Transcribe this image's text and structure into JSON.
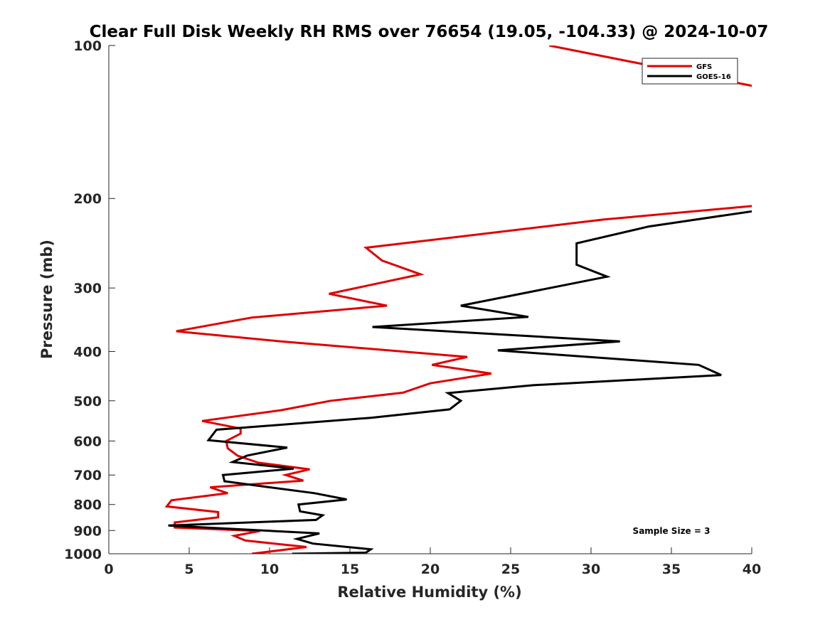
{
  "chart_data": {
    "type": "line",
    "title": "Clear Full Disk Weekly RH RMS over 76654 (19.05, -104.33) @ 2024-10-07",
    "xlabel": "Relative Humidity (%)",
    "ylabel": "Pressure (mb)",
    "xlim": [
      0,
      40
    ],
    "ylim": [
      100,
      1000
    ],
    "yscale": "log",
    "y_reversed": true,
    "xticks": [
      0,
      5,
      10,
      15,
      20,
      25,
      30,
      35,
      40
    ],
    "yticks": [
      100,
      200,
      300,
      400,
      500,
      600,
      700,
      800,
      900,
      1000
    ],
    "legend_position": "top-right",
    "annotation": "Sample Size = 3",
    "series": [
      {
        "name": "GFS",
        "color": "#e00000",
        "points": [
          [
            27.4,
            100
          ],
          [
            40.0,
            120
          ],
          null,
          [
            40.0,
            207
          ],
          [
            30.8,
            220
          ],
          [
            16.0,
            250
          ],
          [
            17.0,
            265
          ],
          [
            19.4,
            282
          ],
          [
            13.7,
            308
          ],
          [
            17.3,
            325
          ],
          [
            8.9,
            343
          ],
          [
            4.2,
            365
          ],
          [
            10.7,
            382
          ],
          [
            22.3,
            410
          ],
          [
            20.1,
            425
          ],
          [
            23.8,
            442
          ],
          [
            20.0,
            462
          ],
          [
            18.3,
            482
          ],
          [
            13.8,
            500
          ],
          [
            10.7,
            522
          ],
          [
            5.8,
            548
          ],
          [
            8.2,
            567
          ],
          [
            8.2,
            580
          ],
          [
            7.3,
            600
          ],
          [
            7.4,
            620
          ],
          [
            8.0,
            641
          ],
          [
            9.3,
            662
          ],
          [
            12.5,
            682
          ],
          [
            11.0,
            700
          ],
          [
            12.1,
            718
          ],
          [
            6.3,
            740
          ],
          [
            7.4,
            760
          ],
          [
            3.9,
            785
          ],
          [
            3.6,
            807
          ],
          [
            6.8,
            828
          ],
          [
            6.8,
            848
          ],
          [
            4.1,
            868
          ],
          [
            4.1,
            888
          ],
          [
            9.4,
            902
          ],
          [
            7.8,
            922
          ],
          [
            8.5,
            942
          ],
          [
            12.3,
            970
          ],
          [
            8.9,
            1000
          ]
        ]
      },
      {
        "name": "GOES-16",
        "color": "#000000",
        "points": [
          [
            40.0,
            212
          ],
          [
            33.6,
            227
          ],
          [
            29.1,
            245
          ],
          [
            29.1,
            270
          ],
          [
            31.0,
            285
          ],
          [
            21.9,
            325
          ],
          [
            26.1,
            342
          ],
          [
            16.4,
            358
          ],
          [
            31.8,
            382
          ],
          [
            24.2,
            398
          ],
          [
            36.7,
            425
          ],
          [
            38.1,
            445
          ],
          [
            26.4,
            466
          ],
          [
            21.1,
            483
          ],
          [
            21.9,
            500
          ],
          [
            21.2,
            520
          ],
          [
            16.3,
            540
          ],
          [
            6.7,
            570
          ],
          [
            6.2,
            598
          ],
          [
            11.1,
            618
          ],
          [
            8.6,
            641
          ],
          [
            7.7,
            660
          ],
          [
            11.5,
            680
          ],
          [
            7.1,
            700
          ],
          [
            7.2,
            720
          ],
          [
            10.0,
            740
          ],
          [
            12.8,
            760
          ],
          [
            14.8,
            782
          ],
          [
            11.8,
            800
          ],
          [
            11.9,
            825
          ],
          [
            13.3,
            840
          ],
          [
            12.9,
            858
          ],
          [
            3.7,
            880
          ],
          [
            13.1,
            912
          ],
          [
            11.7,
            935
          ],
          [
            12.7,
            955
          ],
          [
            16.3,
            980
          ],
          [
            16.0,
            995
          ],
          [
            11.4,
            1000
          ]
        ]
      }
    ]
  }
}
